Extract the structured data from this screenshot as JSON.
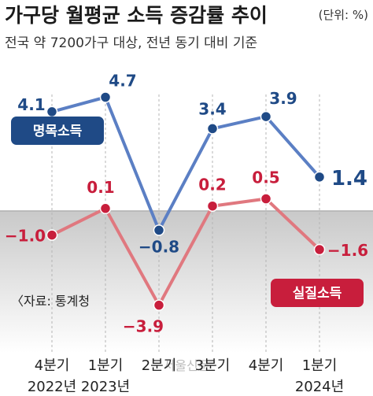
{
  "title": "가구당 월평균 소득 증감률 추이",
  "unit": "(단위: %)",
  "subtitle": "전국 약 7200가구 대상, 전년 동기 대비 기준",
  "source": "〈자료: 통계청",
  "watermark": "서울신문",
  "colors": {
    "nominal": "#5b7fc4",
    "real": "#e0787f",
    "nominal_label": "#1f4a86",
    "real_label": "#c81e3c"
  },
  "chart_data": {
    "type": "line",
    "title": "가구당 월평균 소득 증감률 추이",
    "subtitle": "전국 약 7200가구 대상, 전년 동기 대비 기준",
    "unit": "(단위: %)",
    "categories": [
      "4분기",
      "1분기",
      "2분기",
      "3분기",
      "4분기",
      "1분기"
    ],
    "year_labels": [
      "2022년",
      "2023년",
      "",
      "",
      "",
      "2024년"
    ],
    "series": [
      {
        "name": "명목소득",
        "values": [
          4.1,
          4.7,
          -0.8,
          3.4,
          3.9,
          1.4
        ],
        "labels": [
          "4.1",
          "4.7",
          "−0.8",
          "3.4",
          "3.9",
          "1.4"
        ]
      },
      {
        "name": "실질소득",
        "values": [
          -1.0,
          0.1,
          -3.9,
          0.2,
          0.5,
          -1.6
        ],
        "labels": [
          "−1.0",
          "0.1",
          "−3.9",
          "0.2",
          "0.5",
          "−1.6"
        ]
      }
    ],
    "ylim": [
      -4.4,
      5.4
    ],
    "grid": false,
    "legend": "inline"
  }
}
